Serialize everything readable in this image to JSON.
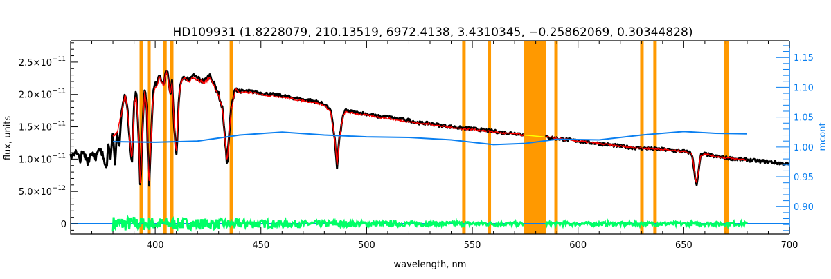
{
  "chart_data": {
    "type": "line",
    "title": "HD109931    (1.8228079, 210.13519, 6972.4138, 3.4310345, −0.25862069, 0.30344828)",
    "xlabel": "wavelength, nm",
    "ylabel": "flux, units",
    "y2label": "mcont",
    "xlim": [
      360,
      700
    ],
    "ylim": [
      -1.6e-12,
      2.83e-11
    ],
    "y2lim": [
      0.854,
      1.178
    ],
    "xticks": [
      {
        "v": 400,
        "label": "400"
      },
      {
        "v": 450,
        "label": "450"
      },
      {
        "v": 500,
        "label": "500"
      },
      {
        "v": 550,
        "label": "550"
      },
      {
        "v": 600,
        "label": "600"
      },
      {
        "v": 650,
        "label": "650"
      },
      {
        "v": 700,
        "label": "700"
      }
    ],
    "yticks": [
      {
        "v": 0,
        "label": "0"
      },
      {
        "v": 5e-12,
        "label": "5.0×10",
        "exp": "−12"
      },
      {
        "v": 1e-11,
        "label": "1.0×10",
        "exp": "−11"
      },
      {
        "v": 1.5e-11,
        "label": "1.5×10",
        "exp": "−11"
      },
      {
        "v": 2e-11,
        "label": "2.0×10",
        "exp": "−11"
      },
      {
        "v": 2.5e-11,
        "label": "2.5×10",
        "exp": "−11"
      }
    ],
    "y2ticks": [
      {
        "v": 0.9,
        "label": "0.90"
      },
      {
        "v": 0.95,
        "label": "0.95"
      },
      {
        "v": 1.0,
        "label": "1.00"
      },
      {
        "v": 1.05,
        "label": "1.05"
      },
      {
        "v": 1.1,
        "label": "1.10"
      },
      {
        "v": 1.15,
        "label": "1.15"
      }
    ],
    "grid": false,
    "colors": {
      "observed": "#000000",
      "model": "#ff0000",
      "continuum": "#0a7ff0",
      "residual": "#00ff66",
      "masked": "#ff9900",
      "masked_model": "#ffff00",
      "axis2": "#0a7ff0"
    },
    "masked_regions": [
      [
        392.6,
        393.6
      ],
      [
        396.2,
        397.2
      ],
      [
        403.8,
        404.8
      ],
      [
        407.0,
        408.0
      ],
      [
        435.2,
        436.2
      ],
      [
        545.2,
        546.2
      ],
      [
        557.2,
        558.4
      ],
      [
        574.5,
        584.7
      ],
      [
        588.8,
        589.9
      ],
      [
        629.4,
        630.5
      ],
      [
        635.6,
        636.7
      ],
      [
        669.0,
        671.4
      ]
    ],
    "series": [
      {
        "key": "observed",
        "axis": "left",
        "unit": "1e-11",
        "points": [
          [
            360,
            1.05
          ],
          [
            362,
            1.12
          ],
          [
            364,
            1.0
          ],
          [
            366,
            1.08
          ],
          [
            368,
            0.98
          ],
          [
            370,
            1.12
          ],
          [
            372,
            1.05
          ],
          [
            374,
            1.12
          ],
          [
            376,
            1.0
          ],
          [
            377,
            0.92
          ],
          [
            378,
            1.25
          ],
          [
            379,
            1.05
          ],
          [
            380,
            1.35
          ],
          [
            381,
            0.9
          ],
          [
            382,
            1.45
          ],
          [
            383,
            1.15
          ],
          [
            384,
            1.7
          ],
          [
            385,
            1.9
          ],
          [
            386,
            2.02
          ],
          [
            387,
            1.7
          ],
          [
            388,
            1.3
          ],
          [
            389,
            0.9
          ],
          [
            390,
            1.85
          ],
          [
            391,
            2.05
          ],
          [
            392,
            1.5
          ],
          [
            393,
            0.55
          ],
          [
            394,
            1.5
          ],
          [
            395,
            2.1
          ],
          [
            396,
            1.8
          ],
          [
            397,
            0.5
          ],
          [
            398,
            1.3
          ],
          [
            399,
            2.0
          ],
          [
            400,
            2.15
          ],
          [
            401,
            2.2
          ],
          [
            402,
            2.32
          ],
          [
            403,
            2.2
          ],
          [
            404,
            2.15
          ],
          [
            405,
            2.4
          ],
          [
            406,
            2.3
          ],
          [
            407,
            2.0
          ],
          [
            408,
            2.2
          ],
          [
            409,
            1.5
          ],
          [
            410,
            1.0
          ],
          [
            411,
            1.8
          ],
          [
            412,
            2.2
          ],
          [
            414,
            2.28
          ],
          [
            416,
            2.2
          ],
          [
            418,
            2.3
          ],
          [
            420,
            2.25
          ],
          [
            423,
            2.2
          ],
          [
            426,
            2.3
          ],
          [
            428,
            2.15
          ],
          [
            430,
            2.0
          ],
          [
            432,
            1.75
          ],
          [
            433,
            1.3
          ],
          [
            434,
            0.9
          ],
          [
            435,
            1.4
          ],
          [
            436,
            1.8
          ],
          [
            438,
            2.1
          ],
          [
            440,
            2.05
          ],
          [
            445,
            2.05
          ],
          [
            450,
            2.02
          ],
          [
            455,
            2.0
          ],
          [
            460,
            1.98
          ],
          [
            465,
            1.95
          ],
          [
            470,
            1.92
          ],
          [
            475,
            1.9
          ],
          [
            480,
            1.85
          ],
          [
            483,
            1.75
          ],
          [
            485,
            1.3
          ],
          [
            486,
            0.85
          ],
          [
            487,
            1.3
          ],
          [
            489,
            1.7
          ],
          [
            490,
            1.75
          ],
          [
            495,
            1.72
          ],
          [
            500,
            1.7
          ],
          [
            505,
            1.66
          ],
          [
            510,
            1.65
          ],
          [
            515,
            1.62
          ],
          [
            520,
            1.6
          ],
          [
            525,
            1.56
          ],
          [
            530,
            1.55
          ],
          [
            535,
            1.52
          ],
          [
            540,
            1.5
          ],
          [
            545,
            1.48
          ],
          [
            550,
            1.47
          ],
          [
            555,
            1.45
          ],
          [
            560,
            1.43
          ],
          [
            565,
            1.41
          ],
          [
            570,
            1.4
          ],
          [
            575,
            1.38
          ],
          [
            585,
            1.34
          ],
          [
            590,
            1.32
          ],
          [
            595,
            1.3
          ],
          [
            600,
            1.28
          ],
          [
            605,
            1.26
          ],
          [
            610,
            1.24
          ],
          [
            615,
            1.22
          ],
          [
            620,
            1.2
          ],
          [
            625,
            1.18
          ],
          [
            630,
            1.17
          ],
          [
            635,
            1.16
          ],
          [
            640,
            1.15
          ],
          [
            645,
            1.13
          ],
          [
            650,
            1.12
          ],
          [
            653,
            1.1
          ],
          [
            654,
            1.06
          ],
          [
            655,
            0.8
          ],
          [
            656,
            0.6
          ],
          [
            657,
            0.8
          ],
          [
            658,
            1.06
          ],
          [
            660,
            1.08
          ],
          [
            665,
            1.04
          ],
          [
            670,
            1.02
          ],
          [
            675,
            1.0
          ],
          [
            680,
            0.99
          ],
          [
            685,
            0.97
          ],
          [
            690,
            0.96
          ],
          [
            695,
            0.94
          ],
          [
            700,
            0.92
          ]
        ]
      },
      {
        "key": "model",
        "axis": "left",
        "unit": "1e-11",
        "points": [
          [
            380,
            1.35
          ],
          [
            382,
            1.4
          ],
          [
            384,
            1.7
          ],
          [
            385,
            1.9
          ],
          [
            386,
            2.0
          ],
          [
            387,
            1.7
          ],
          [
            388,
            1.3
          ],
          [
            389,
            0.95
          ],
          [
            390,
            1.8
          ],
          [
            391,
            2.0
          ],
          [
            392,
            1.5
          ],
          [
            393,
            0.6
          ],
          [
            394,
            1.5
          ],
          [
            395,
            2.05
          ],
          [
            396,
            1.8
          ],
          [
            397,
            0.55
          ],
          [
            398,
            1.3
          ],
          [
            399,
            1.95
          ],
          [
            400,
            2.1
          ],
          [
            401,
            2.15
          ],
          [
            402,
            2.28
          ],
          [
            403,
            2.18
          ],
          [
            404,
            2.12
          ],
          [
            405,
            2.35
          ],
          [
            406,
            2.27
          ],
          [
            407,
            2.0
          ],
          [
            408,
            2.18
          ],
          [
            409,
            1.5
          ],
          [
            410,
            1.05
          ],
          [
            411,
            1.8
          ],
          [
            412,
            2.18
          ],
          [
            414,
            2.25
          ],
          [
            416,
            2.18
          ],
          [
            418,
            2.27
          ],
          [
            420,
            2.22
          ],
          [
            423,
            2.18
          ],
          [
            426,
            2.26
          ],
          [
            428,
            2.12
          ],
          [
            430,
            1.98
          ],
          [
            432,
            1.73
          ],
          [
            433,
            1.3
          ],
          [
            434,
            0.95
          ],
          [
            435,
            1.4
          ],
          [
            436,
            1.78
          ],
          [
            438,
            2.08
          ],
          [
            440,
            2.03
          ],
          [
            445,
            2.03
          ],
          [
            450,
            2.0
          ],
          [
            455,
            1.98
          ],
          [
            460,
            1.96
          ],
          [
            465,
            1.93
          ],
          [
            470,
            1.9
          ],
          [
            475,
            1.88
          ],
          [
            480,
            1.83
          ],
          [
            483,
            1.73
          ],
          [
            485,
            1.3
          ],
          [
            486,
            0.88
          ],
          [
            487,
            1.3
          ],
          [
            489,
            1.68
          ],
          [
            490,
            1.73
          ],
          [
            495,
            1.7
          ],
          [
            500,
            1.68
          ],
          [
            505,
            1.65
          ],
          [
            510,
            1.63
          ],
          [
            515,
            1.6
          ],
          [
            520,
            1.58
          ],
          [
            525,
            1.55
          ],
          [
            530,
            1.54
          ],
          [
            535,
            1.51
          ],
          [
            540,
            1.49
          ],
          [
            545,
            1.47
          ],
          [
            550,
            1.46
          ],
          [
            555,
            1.44
          ],
          [
            560,
            1.42
          ],
          [
            565,
            1.4
          ],
          [
            570,
            1.39
          ],
          [
            575,
            1.37
          ],
          [
            585,
            1.34
          ],
          [
            590,
            1.32
          ],
          [
            595,
            1.3
          ],
          [
            600,
            1.28
          ],
          [
            605,
            1.26
          ],
          [
            610,
            1.24
          ],
          [
            615,
            1.22
          ],
          [
            620,
            1.2
          ],
          [
            625,
            1.18
          ],
          [
            630,
            1.17
          ],
          [
            635,
            1.16
          ],
          [
            640,
            1.15
          ],
          [
            645,
            1.13
          ],
          [
            650,
            1.12
          ],
          [
            653,
            1.1
          ],
          [
            654,
            1.06
          ],
          [
            655,
            0.82
          ],
          [
            656,
            0.62
          ],
          [
            657,
            0.82
          ],
          [
            658,
            1.06
          ],
          [
            660,
            1.08
          ],
          [
            665,
            1.04
          ],
          [
            670,
            1.02
          ],
          [
            675,
            1.0
          ],
          [
            680,
            0.99
          ]
        ]
      },
      {
        "key": "continuum",
        "axis": "right",
        "points": [
          [
            380,
            1.009
          ],
          [
            400,
            1.008
          ],
          [
            420,
            1.01
          ],
          [
            440,
            1.02
          ],
          [
            460,
            1.025
          ],
          [
            480,
            1.02
          ],
          [
            500,
            1.017
          ],
          [
            520,
            1.016
          ],
          [
            540,
            1.012
          ],
          [
            560,
            1.004
          ],
          [
            575,
            1.006
          ],
          [
            590,
            1.013
          ],
          [
            610,
            1.012
          ],
          [
            630,
            1.02
          ],
          [
            650,
            1.026
          ],
          [
            665,
            1.023
          ],
          [
            680,
            1.022
          ]
        ]
      },
      {
        "key": "zero",
        "axis": "left",
        "unit": "1e-11",
        "points": [
          [
            360,
            0
          ],
          [
            700,
            0
          ]
        ]
      },
      {
        "key": "residual",
        "axis": "left",
        "unit": "1e-11",
        "amplitude_by_wavelength": [
          [
            380,
            0.12
          ],
          [
            400,
            0.1
          ],
          [
            430,
            0.08
          ],
          [
            470,
            0.05
          ],
          [
            520,
            0.04
          ],
          [
            574,
            0.03
          ],
          [
            585,
            0.03
          ],
          [
            680,
            0.03
          ]
        ],
        "points": [
          [
            380,
            0
          ],
          [
            574.5,
            0
          ],
          [
            584.7,
            0
          ],
          [
            680,
            0
          ]
        ]
      }
    ]
  }
}
